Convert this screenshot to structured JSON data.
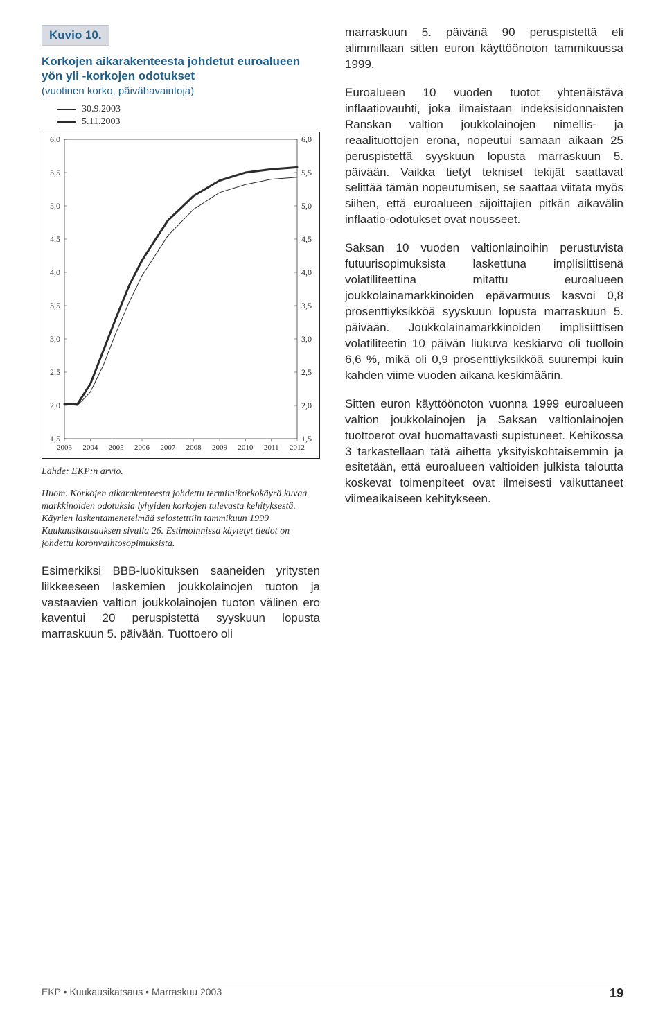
{
  "figure": {
    "label": "Kuvio 10.",
    "title": "Korkojen aikarakenteesta johdetut euroalueen yön yli -korkojen odotukset",
    "subtitle": "(vuotinen korko, päivähavaintoja)",
    "legend": [
      {
        "label": "30.9.2003",
        "line_width": 1,
        "color": "#2b2b2b"
      },
      {
        "label": "5.11.2003",
        "line_width": 3,
        "color": "#2b2b2b"
      }
    ],
    "chart": {
      "type": "line",
      "x_years": [
        2003,
        2004,
        2005,
        2006,
        2007,
        2008,
        2009,
        2010,
        2011,
        2012
      ],
      "ylim": [
        1.5,
        6.0
      ],
      "ytick_step": 0.5,
      "y_labels": [
        "6,0",
        "5,5",
        "5,0",
        "4,5",
        "4,0",
        "3,5",
        "3,0",
        "2,5",
        "2,0",
        "1,5"
      ],
      "grid_color": "#ffffff",
      "border_color": "#222222",
      "background_color": "#ffffff",
      "series": [
        {
          "name": "30.9.2003",
          "line_width": 1,
          "color": "#2b2b2b",
          "points": [
            {
              "x": 2003.0,
              "y": 2.02
            },
            {
              "x": 2003.5,
              "y": 2.0
            },
            {
              "x": 2004.0,
              "y": 2.2
            },
            {
              "x": 2004.5,
              "y": 2.6
            },
            {
              "x": 2005.0,
              "y": 3.1
            },
            {
              "x": 2005.5,
              "y": 3.55
            },
            {
              "x": 2006.0,
              "y": 3.95
            },
            {
              "x": 2007.0,
              "y": 4.55
            },
            {
              "x": 2008.0,
              "y": 4.95
            },
            {
              "x": 2009.0,
              "y": 5.2
            },
            {
              "x": 2010.0,
              "y": 5.32
            },
            {
              "x": 2011.0,
              "y": 5.4
            },
            {
              "x": 2012.0,
              "y": 5.43
            }
          ]
        },
        {
          "name": "5.11.2003",
          "line_width": 3,
          "color": "#2b2b2b",
          "points": [
            {
              "x": 2003.0,
              "y": 2.02
            },
            {
              "x": 2003.5,
              "y": 2.02
            },
            {
              "x": 2004.0,
              "y": 2.32
            },
            {
              "x": 2004.5,
              "y": 2.82
            },
            {
              "x": 2005.0,
              "y": 3.32
            },
            {
              "x": 2005.5,
              "y": 3.8
            },
            {
              "x": 2006.0,
              "y": 4.18
            },
            {
              "x": 2007.0,
              "y": 4.78
            },
            {
              "x": 2008.0,
              "y": 5.15
            },
            {
              "x": 2009.0,
              "y": 5.38
            },
            {
              "x": 2010.0,
              "y": 5.5
            },
            {
              "x": 2011.0,
              "y": 5.55
            },
            {
              "x": 2012.0,
              "y": 5.58
            }
          ]
        }
      ]
    },
    "source": "Lähde: EKP:n arvio.",
    "note": "Huom. Korkojen aikarakenteesta johdettu termiinikorkokäyrä kuvaa markkinoiden odotuksia lyhyiden korkojen tulevasta kehityksestä. Käyrien laskentamenetelmää selostetttiin tammikuun 1999 Kuukausikatsauksen sivulla 26. Estimoinnissa käytetyt tiedot on johdettu koronvaihtosopimuksista."
  },
  "left_body_p1": "Esimerkiksi BBB-luokituksen saaneiden yritysten liikkeeseen laskemien joukkolainojen tuoton ja vastaavien valtion joukkolainojen tuoton välinen ero kaventui 20 peruspistettä syyskuun lopusta marraskuun 5. päivään. Tuottoero oli",
  "right_body_p1": "marraskuun 5. päivänä 90 peruspistettä eli alimmillaan sitten euron käyttöönoton tammikuussa 1999.",
  "right_body_p2": "Euroalueen 10 vuoden tuotot yhtenäistävä inflaatiovauhti, joka ilmaistaan indeksisidonnaisten Ranskan valtion joukkolainojen nimellis- ja reaalituottojen erona, nopeutui samaan aikaan 25 peruspistettä syyskuun lopusta marraskuun 5. päivään. Vaikka tietyt tekniset tekijät saattavat selittää tämän nopeutumisen, se saattaa viitata myös siihen, että euroalueen sijoittajien pitkän aikavälin inflaatio-odotukset ovat nousseet.",
  "right_body_p3": "Saksan 10 vuoden valtionlainoihin perustuvista futuurisopimuksista laskettuna implisiittisenä volatiliteettina mitattu euroalueen joukkolainamarkkinoiden epävarmuus kasvoi 0,8 prosenttiyksikköä syyskuun lopusta marraskuun 5. päivään. Joukkolainamarkkinoiden implisiittisen volatiliteetin 10 päivän liukuva keskiarvo oli tuolloin 6,6 %, mikä oli 0,9 prosenttiyksikköä suurempi kuin kahden viime vuoden aikana keskimäärin.",
  "right_body_p4": "Sitten euron käyttöönoton vuonna 1999 euroalueen valtion joukkolainojen ja Saksan valtionlainojen tuottoerot ovat huomattavasti supistuneet. Kehikossa 3 tarkastellaan tätä aihetta yksityiskohtaisemmin ja esitetään, että euroalueen valtioiden julkista taloutta koskevat toimenpiteet ovat ilmeisesti vaikuttaneet viimeaikaiseen kehitykseen.",
  "footer": {
    "left": "EKP • Kuukausikatsaus • Marraskuu 2003",
    "page": "19"
  }
}
